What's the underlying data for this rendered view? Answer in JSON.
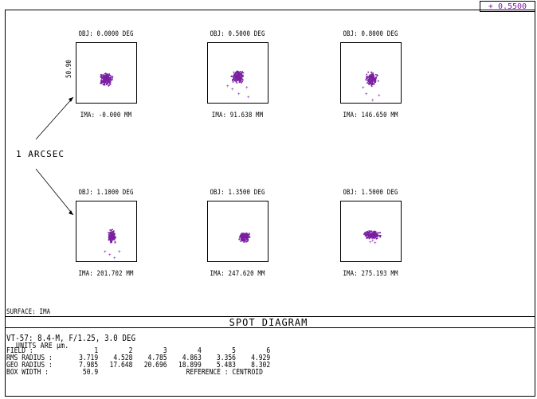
{
  "wavelength_legend": "+ 0.5500",
  "cells": [
    {
      "obj": "OBJ: 0.0000 DEG",
      "ima": "IMA: -0.000 MM",
      "scale_label": "50.90"
    },
    {
      "obj": "OBJ: 0.5000 DEG",
      "ima": "IMA: 91.638 MM"
    },
    {
      "obj": "OBJ: 0.8000 DEG",
      "ima": "IMA: 146.650 MM"
    },
    {
      "obj": "OBJ: 1.1000 DEG",
      "ima": "IMA: 201.702 MM"
    },
    {
      "obj": "OBJ: 1.3500 DEG",
      "ima": "IMA: 247.620 MM"
    },
    {
      "obj": "OBJ: 1.5000 DEG",
      "ima": "IMA: 275.193 MM"
    }
  ],
  "arcsec_label": "1 ARCSEC",
  "surface": "SURFACE: IMA",
  "title": "SPOT DIAGRAM",
  "info_line": "VT-57:  8.4-M,  F/1.25,  3.0 DEG",
  "units_line": "UNITS ARE μm.",
  "table": {
    "field_label": "FIELD      :",
    "fields": [
      "1",
      "2",
      "3",
      "4",
      "5",
      "6"
    ],
    "rms_label": "RMS RADIUS :",
    "rms": [
      "3.719",
      "4.528",
      "4.785",
      "4.863",
      "3.356",
      "4.929"
    ],
    "geo_label": "GEO RADIUS :",
    "geo": [
      "7.985",
      "17.648",
      "20.696",
      "18.899",
      "5.483",
      "8.302"
    ],
    "box_label": "BOX WIDTH  :",
    "box_width": "50.9",
    "reference": "REFERENCE  : CENTROID"
  },
  "colors": {
    "spot": "#7a1fa2"
  }
}
